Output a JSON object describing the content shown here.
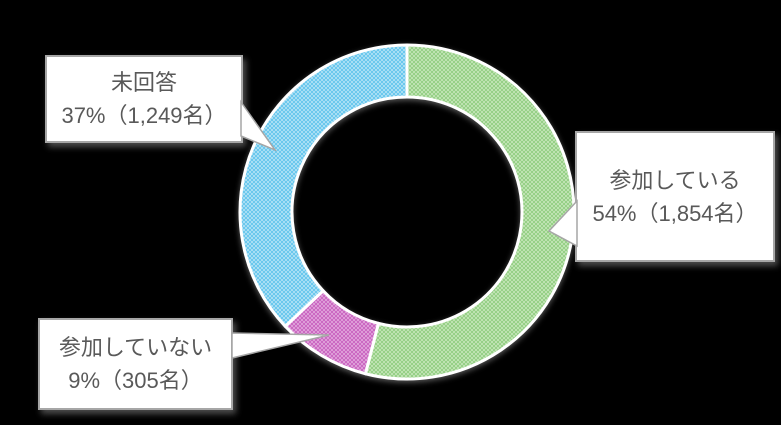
{
  "background_color": "#000000",
  "text_color": "#595959",
  "box_border_color": "#a6a6a6",
  "chart_data": {
    "type": "pie",
    "subtype": "donut",
    "title": "",
    "start_angle_deg": 0,
    "direction": "clockwise",
    "legend_position": "none",
    "labels_style": "callout-boxes",
    "segments": [
      {
        "label": "参加している",
        "percent": 54,
        "value": 1854,
        "count_label": "1,854名",
        "color_base": "#c9e9bd",
        "color_hatch": "#8fcc7f",
        "color_avg": "#a5d998"
      },
      {
        "label": "参加していない",
        "percent": 9,
        "value": 305,
        "count_label": "305名",
        "color_base": "#e4abdf",
        "color_hatch": "#c75fbe",
        "color_avg": "#d585ce"
      },
      {
        "label": "未回答",
        "percent": 37,
        "value": 1249,
        "count_label": "1,249名",
        "color_base": "#b9e5f7",
        "color_hatch": "#5fc3ec",
        "color_avg": "#8bd3f1"
      }
    ]
  },
  "callouts": [
    {
      "id": "mikaito",
      "line1": "未回答",
      "line2": "37%（1,249名）"
    },
    {
      "id": "sanka",
      "line1": "参加している",
      "line2": "54%（1,854名）"
    },
    {
      "id": "fusanka",
      "line1": "参加していない",
      "line2": "9%（305名）"
    }
  ]
}
